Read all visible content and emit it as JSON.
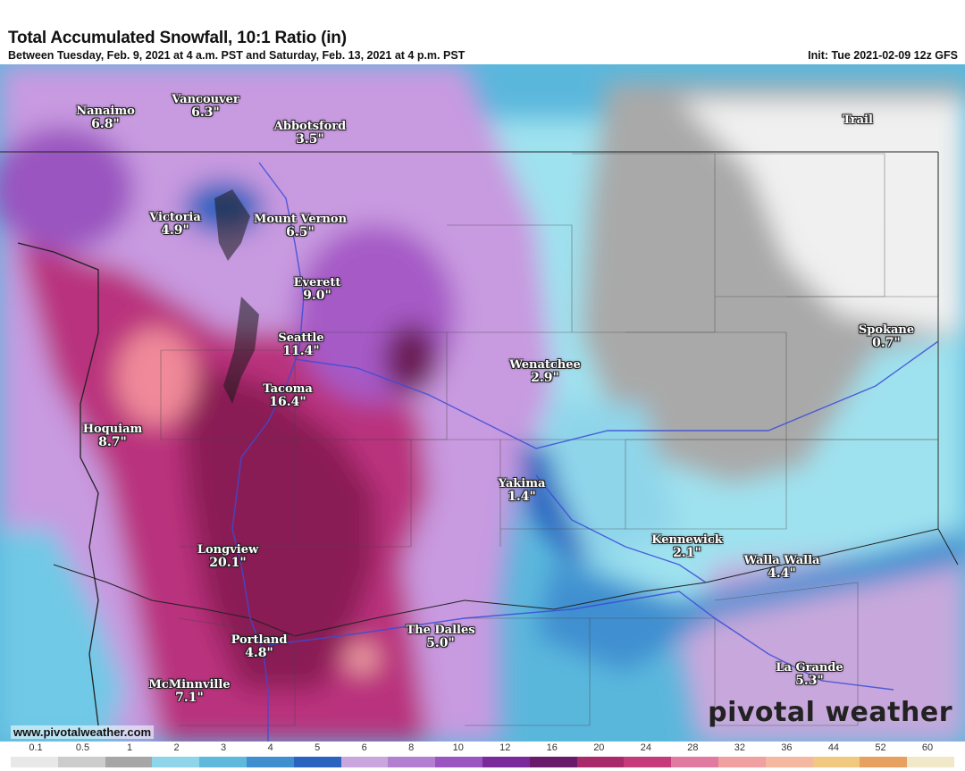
{
  "header": {
    "title": "Total Accumulated Snowfall, 10:1 Ratio (in)",
    "subtitle": "Between Tuesday, Feb. 9, 2021 at 4 a.m. PST and Saturday, Feb. 13, 2021 at 4 p.m. PST",
    "init": "Init: Tue 2021-02-09 12z GFS"
  },
  "cities": [
    {
      "name": "Nanaimo",
      "value": "6.8\""
    },
    {
      "name": "Vancouver",
      "value": "6.3\""
    },
    {
      "name": "Abbotsford",
      "value": "3.5\""
    },
    {
      "name": "Trail",
      "value": ""
    },
    {
      "name": "Victoria",
      "value": "4.9\""
    },
    {
      "name": "Mount Vernon",
      "value": "6.5\""
    },
    {
      "name": "Everett",
      "value": "9.0\""
    },
    {
      "name": "Seattle",
      "value": "11.4\""
    },
    {
      "name": "Tacoma",
      "value": "16.4\""
    },
    {
      "name": "Spokane",
      "value": "0.7\""
    },
    {
      "name": "Wenatchee",
      "value": "2.9\""
    },
    {
      "name": "Hoquiam",
      "value": "8.7\""
    },
    {
      "name": "Yakima",
      "value": "1.4\""
    },
    {
      "name": "Kennewick",
      "value": "2.1\""
    },
    {
      "name": "Walla Walla",
      "value": "4.4\""
    },
    {
      "name": "Longview",
      "value": "20.1\""
    },
    {
      "name": "The Dalles",
      "value": "5.0\""
    },
    {
      "name": "Portland",
      "value": "4.8\""
    },
    {
      "name": "La Grande",
      "value": "5.3\""
    },
    {
      "name": "McMinnville",
      "value": "7.1\""
    }
  ],
  "branding": {
    "website": "www.pivotalweather.com",
    "logo": "pivotal weather"
  },
  "legend": {
    "ticks": [
      "0.1",
      "0.5",
      "1",
      "2",
      "3",
      "4",
      "5",
      "6",
      "8",
      "10",
      "12",
      "16",
      "20",
      "24",
      "28",
      "32",
      "36",
      "44",
      "52",
      "60"
    ],
    "colors": [
      "#e8e8e8",
      "#cccccc",
      "#a6a6a6",
      "#8fd5ea",
      "#5fb9dc",
      "#3f8fd0",
      "#2a64c0",
      "#c9a6dd",
      "#b37fd0",
      "#9a55c0",
      "#7a2a9a",
      "#6a1a6a",
      "#a82a6a",
      "#c43a7a",
      "#e07aa0",
      "#f0a0a0",
      "#f4b8a0",
      "#f0c880",
      "#e8a060",
      "#f0e8c8"
    ]
  }
}
